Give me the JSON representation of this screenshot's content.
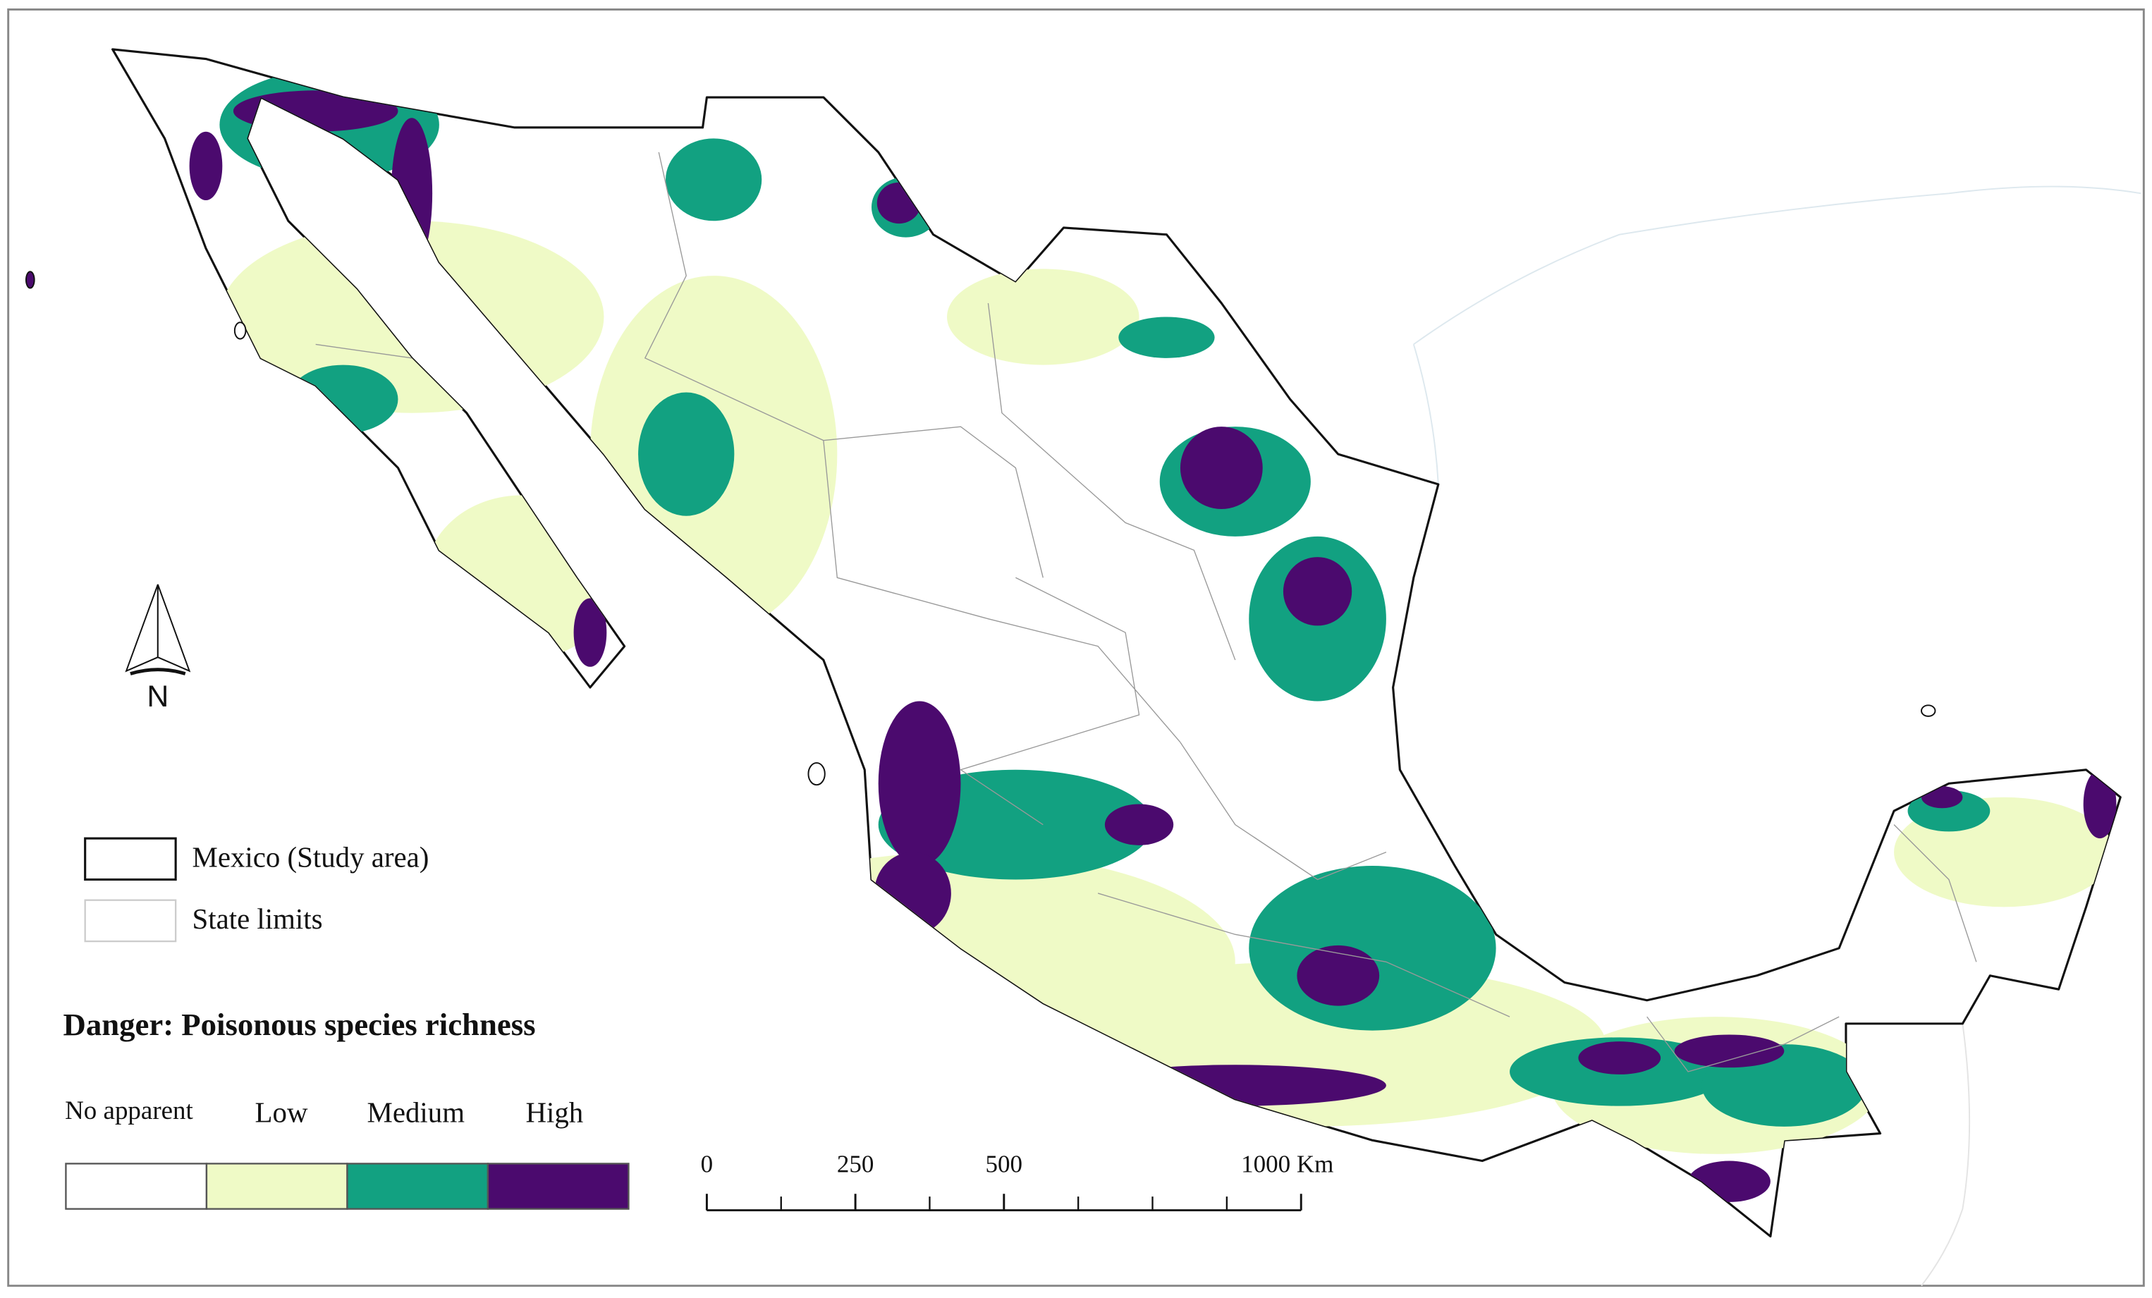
{
  "map": {
    "title": "Danger: Poisonous species richness",
    "legend": [
      {
        "label": "Mexico (Study area)"
      },
      {
        "label": "State limits"
      }
    ],
    "classes": [
      {
        "label": "No apparent",
        "color": "#ffffff"
      },
      {
        "label": "Low",
        "color": "#effac6"
      },
      {
        "label": "Medium",
        "color": "#12a181"
      },
      {
        "label": "High",
        "color": "#4b0a6e"
      }
    ],
    "north": "N",
    "scale_bar": {
      "ticks": [
        0,
        250,
        500,
        {
          "value": 1000,
          "label": "1000 Km"
        }
      ]
    }
  }
}
